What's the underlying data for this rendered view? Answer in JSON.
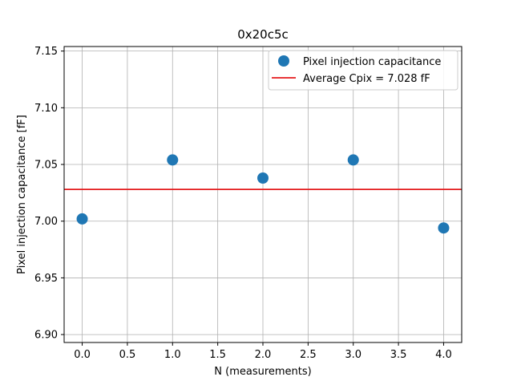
{
  "chart_data": {
    "type": "scatter",
    "title": "0x20c5c",
    "xlabel": "N (measurements)",
    "ylabel": "Pixel injection capacitance [fF]",
    "xlim": [
      -0.2,
      4.2
    ],
    "ylim": [
      6.893,
      7.154
    ],
    "xticks": [
      0.0,
      0.5,
      1.0,
      1.5,
      2.0,
      2.5,
      3.0,
      3.5,
      4.0
    ],
    "xtick_labels": [
      "0.0",
      "0.5",
      "1.0",
      "1.5",
      "2.0",
      "2.5",
      "3.0",
      "3.5",
      "4.0"
    ],
    "yticks": [
      6.9,
      6.95,
      7.0,
      7.05,
      7.1,
      7.15
    ],
    "ytick_labels": [
      "6.90",
      "6.95",
      "7.00",
      "7.05",
      "7.10",
      "7.15"
    ],
    "grid": true,
    "legend_position": "top-right",
    "series": [
      {
        "name": "Pixel injection capacitance",
        "kind": "scatter",
        "color": "#1f77b4",
        "x": [
          0,
          1,
          2,
          3,
          4
        ],
        "y": [
          7.002,
          7.054,
          7.038,
          7.054,
          6.994
        ]
      },
      {
        "name": "Average Cpix = 7.028 fF",
        "kind": "hline",
        "color": "#e41a1c",
        "y": 7.028
      }
    ]
  }
}
